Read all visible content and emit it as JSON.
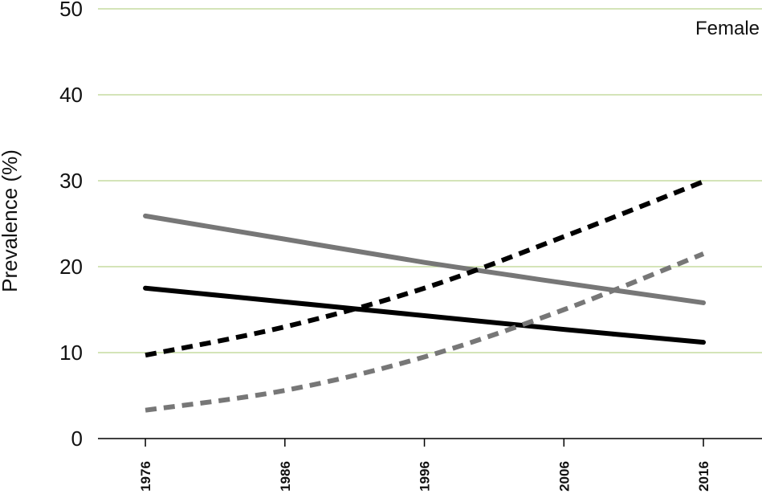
{
  "chart_data": {
    "type": "line",
    "title": "",
    "xlabel": "",
    "ylabel": "Prevalence (%)",
    "annotation": "Female",
    "x_ticks": [
      "1976",
      "1986",
      "1996",
      "2006",
      "2016"
    ],
    "y_ticks": [
      "0",
      "10",
      "20",
      "30",
      "40",
      "50"
    ],
    "xlim": [
      1972.6,
      2020.2
    ],
    "ylim": [
      0,
      50
    ],
    "grid": "horizontal",
    "grid_color": "#c5dca0",
    "series": [
      {
        "color": "#777777",
        "dash": "solid",
        "points": [
          [
            1976,
            25.9
          ],
          [
            1986,
            23.2
          ],
          [
            1996,
            20.5
          ],
          [
            2006,
            18.1
          ],
          [
            2016,
            15.8
          ]
        ]
      },
      {
        "color": "#000000",
        "dash": "solid",
        "points": [
          [
            1976,
            17.5
          ],
          [
            1986,
            15.9
          ],
          [
            1996,
            14.3
          ],
          [
            2006,
            12.7
          ],
          [
            2016,
            11.2
          ]
        ]
      },
      {
        "color": "#000000",
        "dash": "dashed",
        "points": [
          [
            1976,
            9.7
          ],
          [
            1986,
            13.0
          ],
          [
            1996,
            17.5
          ],
          [
            2006,
            23.5
          ],
          [
            2016,
            29.9
          ]
        ]
      },
      {
        "color": "#777777",
        "dash": "dashed",
        "points": [
          [
            1976,
            3.3
          ],
          [
            1986,
            5.6
          ],
          [
            1996,
            9.5
          ],
          [
            2006,
            15.0
          ],
          [
            2016,
            21.5
          ]
        ]
      }
    ]
  }
}
